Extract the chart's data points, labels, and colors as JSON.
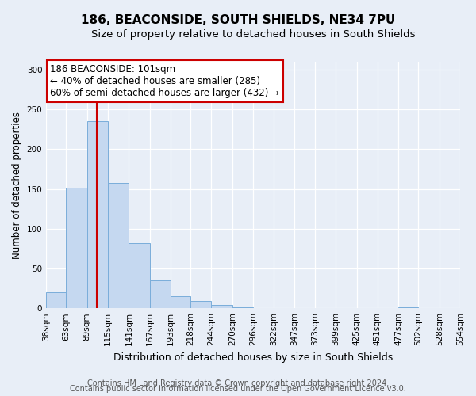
{
  "title": "186, BEACONSIDE, SOUTH SHIELDS, NE34 7PU",
  "subtitle": "Size of property relative to detached houses in South Shields",
  "xlabel": "Distribution of detached houses by size in South Shields",
  "ylabel": "Number of detached properties",
  "bin_edges": [
    38,
    63,
    89,
    115,
    141,
    167,
    193,
    218,
    244,
    270,
    296,
    322,
    347,
    373,
    399,
    425,
    451,
    477,
    502,
    528,
    554
  ],
  "bar_heights": [
    20,
    152,
    235,
    158,
    82,
    35,
    15,
    9,
    4,
    1,
    0,
    0,
    0,
    0,
    0,
    0,
    0,
    1,
    0,
    0
  ],
  "bar_color": "#c5d8f0",
  "bar_edge_color": "#7aadda",
  "red_line_x": 101,
  "red_line_color": "#cc0000",
  "ylim": [
    0,
    310
  ],
  "yticks": [
    0,
    50,
    100,
    150,
    200,
    250,
    300
  ],
  "annotation_line1": "186 BEACONSIDE: 101sqm",
  "annotation_line2": "← 40% of detached houses are smaller (285)",
  "annotation_line3": "60% of semi-detached houses are larger (432) →",
  "annotation_box_color": "#ffffff",
  "annotation_box_edge_color": "#cc0000",
  "footnote1": "Contains HM Land Registry data © Crown copyright and database right 2024.",
  "footnote2": "Contains public sector information licensed under the Open Government Licence v3.0.",
  "background_color": "#e8eef7",
  "plot_background_color": "#e8eef7",
  "grid_color": "#ffffff",
  "title_fontsize": 11,
  "subtitle_fontsize": 9.5,
  "xlabel_fontsize": 9,
  "ylabel_fontsize": 8.5,
  "tick_fontsize": 7.5,
  "annotation_fontsize": 8.5,
  "footnote_fontsize": 7
}
